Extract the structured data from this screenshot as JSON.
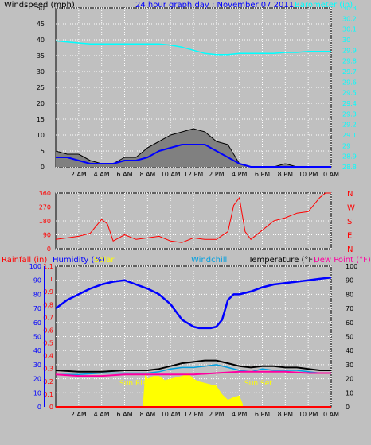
{
  "colors": {
    "background": "#c0c0c0",
    "plot_background": "#c0c0c0",
    "grid": "#ffffff",
    "wind_gust": "#000000",
    "wind_avg": "#0000ff",
    "wind_fill": "#808080",
    "barometer": "#00ffff",
    "direction": "#ff0000",
    "humidity": "#0000ff",
    "temperature": "#000000",
    "windchill": "#00a0e0",
    "dewpoint": "#ff00a0",
    "solar": "#ffff00",
    "rainfall": "#ff0000"
  },
  "chart_data": [
    {
      "type": "line",
      "panel": "wind_barometer",
      "title": "24 hour graph day : November 07 2011",
      "ylabel_left": "Windspeed (mph)",
      "ylabel_right": "Barometer (in)",
      "ylim_left": [
        0,
        50
      ],
      "yticks_left": [
        "0",
        "5",
        "10",
        "15",
        "20",
        "25",
        "30",
        "35",
        "40",
        "45",
        "50"
      ],
      "ylim_right": [
        28.8,
        30.3
      ],
      "yticks_right": [
        "28.8",
        "28.9",
        "29",
        "29.1",
        "29.2",
        "29.3",
        "29.4",
        "29.5",
        "29.6",
        "29.7",
        "29.8",
        "29.9",
        "30",
        "30.1",
        "30.2",
        "30.3"
      ],
      "x_ticks": [
        "2 AM",
        "4 AM",
        "6 AM",
        "8 AM",
        "10 AM",
        "12 PM",
        "2 PM",
        "4 PM",
        "6 PM",
        "8 PM",
        "10 PM",
        "0 AM"
      ],
      "xlim_hours": [
        0,
        24
      ],
      "grid": true,
      "series": [
        {
          "name": "Windspeed",
          "hours": [
            0,
            1,
            2,
            3,
            4,
            5,
            6,
            7,
            8,
            9,
            10,
            11,
            12,
            13,
            14,
            15,
            16,
            17,
            18,
            19,
            20,
            21,
            22,
            23,
            24
          ],
          "values": [
            5,
            4,
            4,
            2,
            1,
            1,
            3,
            3,
            6,
            8,
            10,
            11,
            12,
            11,
            8,
            7,
            1,
            0,
            0,
            0,
            1,
            0,
            0,
            0,
            0
          ]
        },
        {
          "name": "Windspeed avg",
          "hours": [
            0,
            1,
            2,
            3,
            4,
            5,
            6,
            7,
            8,
            9,
            10,
            11,
            12,
            13,
            14,
            15,
            16,
            17,
            18,
            19,
            20,
            21,
            22,
            23,
            24
          ],
          "values": [
            3,
            3,
            2,
            1,
            1,
            1,
            2,
            2,
            3,
            5,
            6,
            7,
            7,
            7,
            5,
            3,
            1,
            0,
            0,
            0,
            0,
            0,
            0,
            0,
            0
          ]
        },
        {
          "name": "Barometer",
          "hours": [
            0,
            1,
            2,
            3,
            4,
            5,
            6,
            7,
            8,
            9,
            10,
            11,
            12,
            13,
            14,
            15,
            16,
            17,
            18,
            19,
            20,
            21,
            22,
            23,
            24
          ],
          "values": [
            29.99,
            29.98,
            29.97,
            29.96,
            29.96,
            29.96,
            29.96,
            29.96,
            29.96,
            29.96,
            29.95,
            29.93,
            29.9,
            29.87,
            29.86,
            29.86,
            29.87,
            29.87,
            29.87,
            29.87,
            29.88,
            29.88,
            29.89,
            29.89,
            29.89
          ]
        }
      ]
    },
    {
      "type": "line",
      "panel": "wind_direction",
      "ylim": [
        0,
        360
      ],
      "yticks": [
        "0",
        "90",
        "180",
        "270",
        "360"
      ],
      "right_labels": [
        "N",
        "W",
        "S",
        "E",
        "N"
      ],
      "xlim_hours": [
        0,
        24
      ],
      "grid": true,
      "series": [
        {
          "name": "Wind Direction",
          "hours": [
            0,
            1,
            2,
            3,
            4,
            4.5,
            5,
            5.5,
            6,
            7,
            8,
            9,
            10,
            11,
            12,
            13,
            14,
            15,
            15.5,
            16,
            16.5,
            17,
            18,
            19,
            20,
            21,
            22,
            23,
            23.5,
            24
          ],
          "values": [
            60,
            70,
            80,
            100,
            190,
            160,
            50,
            70,
            90,
            60,
            70,
            80,
            50,
            40,
            70,
            60,
            60,
            110,
            280,
            330,
            110,
            60,
            120,
            180,
            200,
            230,
            240,
            330,
            360,
            360
          ]
        }
      ]
    },
    {
      "type": "line",
      "panel": "temperature_humidity",
      "ylabel_left_1": "Rainfall (in)",
      "ylabel_left_2": "Humidity (%)",
      "ylabel_solar": "Solar",
      "ylabel_windchill": "Windchill",
      "ylabel_right_1": "Temperature (°F)",
      "ylabel_right_2": "Dew Point (°F)",
      "ylim_rain": [
        0,
        1.1
      ],
      "yticks_rain": [
        "0",
        "0.1",
        "0.2",
        "0.3",
        "0.4",
        "0.5",
        "0.6",
        "0.7",
        "0.8",
        "0.9",
        "1",
        "1.1"
      ],
      "ylim_humidity": [
        0,
        100
      ],
      "yticks_humidity": [
        "0",
        "10",
        "20",
        "30",
        "40",
        "50",
        "60",
        "70",
        "80",
        "90",
        "100"
      ],
      "ylim_temp": [
        0,
        100
      ],
      "yticks_temp": [
        "0",
        "10",
        "20",
        "30",
        "40",
        "50",
        "60",
        "70",
        "80",
        "90",
        "100"
      ],
      "annotations": [
        "Sun Rise",
        "Sun Set"
      ],
      "xlim_hours": [
        0,
        24
      ],
      "grid": true,
      "series": [
        {
          "name": "Humidity",
          "hours": [
            0,
            1,
            2,
            3,
            4,
            5,
            6,
            7,
            8,
            9,
            10,
            11,
            12,
            12.5,
            13,
            13.5,
            14,
            14.5,
            15,
            15.5,
            16,
            17,
            18,
            19,
            20,
            21,
            22,
            23,
            24
          ],
          "values": [
            70,
            76,
            80,
            84,
            87,
            89,
            90,
            87,
            84,
            80,
            73,
            62,
            57,
            56,
            56,
            56,
            57,
            62,
            76,
            80,
            80,
            82,
            85,
            87,
            88,
            89,
            90,
            91,
            92
          ]
        },
        {
          "name": "Temperature",
          "hours": [
            0,
            2,
            4,
            6,
            8,
            9,
            10,
            11,
            12,
            13,
            14,
            15,
            16,
            17,
            18,
            19,
            20,
            21,
            22,
            23,
            24
          ],
          "values": [
            26,
            25,
            25,
            26,
            26,
            27,
            29,
            31,
            32,
            33,
            33,
            31,
            29,
            28,
            29,
            29,
            28,
            28,
            27,
            26,
            26
          ]
        },
        {
          "name": "Windchill",
          "hours": [
            0,
            2,
            4,
            6,
            8,
            9,
            10,
            11,
            12,
            13,
            14,
            15,
            16,
            17,
            18,
            19,
            20,
            21,
            22,
            23,
            24
          ],
          "values": [
            23,
            23,
            24,
            24,
            24,
            25,
            27,
            28,
            28,
            29,
            30,
            28,
            26,
            25,
            27,
            26,
            26,
            26,
            25,
            24,
            24
          ]
        },
        {
          "name": "Dew Point",
          "hours": [
            0,
            2,
            4,
            6,
            8,
            10,
            12,
            14,
            16,
            18,
            20,
            22,
            24
          ],
          "values": [
            23,
            22,
            22,
            23,
            23,
            23,
            23,
            24,
            25,
            25,
            25,
            24,
            24
          ]
        },
        {
          "name": "Solar",
          "hours": [
            7.6,
            7.8,
            8,
            8.5,
            9,
            9.5,
            10,
            10.5,
            11,
            11.5,
            12,
            12.5,
            13,
            13.5,
            14,
            14.5,
            15,
            15.5,
            16,
            16.3
          ],
          "values": [
            2,
            25,
            20,
            22,
            22,
            19,
            20,
            21,
            22,
            24,
            20,
            18,
            17,
            16,
            15,
            9,
            5,
            7,
            8,
            2
          ]
        },
        {
          "name": "Rainfall",
          "hours": [
            0,
            24
          ],
          "values": [
            0,
            0
          ]
        }
      ]
    }
  ]
}
